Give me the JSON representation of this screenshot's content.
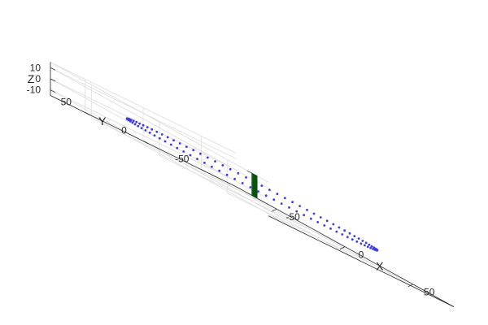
{
  "chart_data": {
    "type": "scatter3d",
    "title": "",
    "xlabel": "X",
    "ylabel": "Y",
    "zlabel": "Z",
    "xlim": [
      -80,
      80
    ],
    "ylim": [
      -80,
      80
    ],
    "zlim": [
      -15,
      15
    ],
    "xticks": [
      -50,
      0,
      50
    ],
    "yticks": [
      -50,
      0,
      50
    ],
    "zticks": [
      -10,
      0,
      10
    ],
    "xtick_labels": [
      "-50",
      "0",
      "50"
    ],
    "ytick_labels": [
      "-50",
      "0",
      "50"
    ],
    "ztick_labels": [
      "-10",
      "0",
      "10"
    ],
    "grid": true,
    "view": "isometric",
    "series": [
      {
        "kind": "circle-points",
        "center": [
          0,
          0,
          0
        ],
        "radius": 70,
        "point_count": 100,
        "color": "#3a3ae6"
      },
      {
        "kind": "cuboid",
        "x": [
          -2,
          2
        ],
        "y": [
          -2,
          2
        ],
        "z": [
          -10,
          10
        ],
        "colors": {
          "top": "#3ff53f",
          "front": "#19c019",
          "side": "#0c520c"
        }
      }
    ]
  }
}
